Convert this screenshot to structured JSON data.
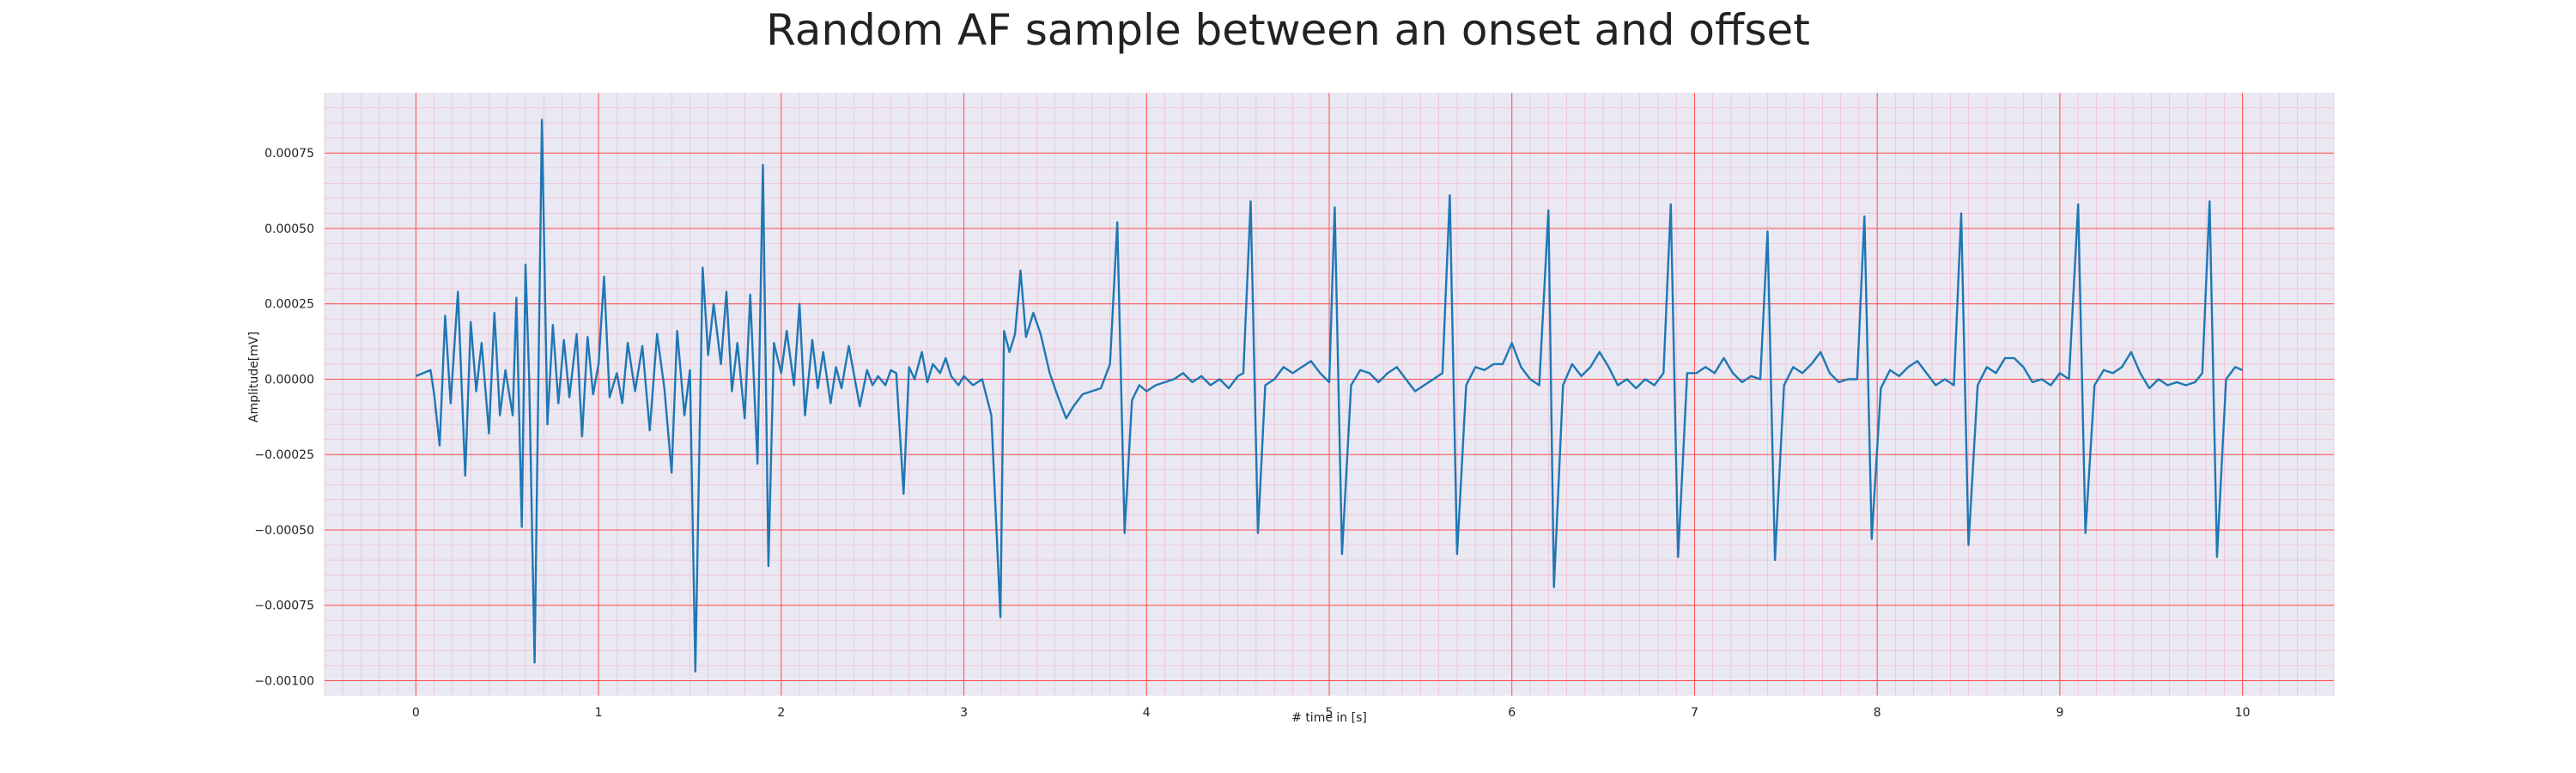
{
  "chart_data": {
    "type": "line",
    "title": "Random AF sample between an onset and offset",
    "xlabel": "# time in [s]",
    "ylabel": "Amplitude[mV]",
    "xlim": [
      -0.5,
      10.5
    ],
    "ylim": [
      -0.00105,
      0.00095
    ],
    "x_ticks": [
      0,
      1,
      2,
      3,
      4,
      5,
      6,
      7,
      8,
      9,
      10
    ],
    "x_tick_labels": [
      "0",
      "1",
      "2",
      "3",
      "4",
      "5",
      "6",
      "7",
      "8",
      "9",
      "10"
    ],
    "y_ticks": [
      0.00075,
      0.0005,
      0.00025,
      0.0,
      -0.00025,
      -0.0005,
      -0.00075,
      -0.001
    ],
    "y_tick_labels": [
      "0.00075",
      "0.00050",
      "0.00025",
      "0.00000",
      "−0.00025",
      "−0.00050",
      "−0.00075",
      "−0.00100"
    ],
    "grid": true,
    "minor_grid": true,
    "colors": {
      "line": "#1f77b4",
      "major_grid": "#ff4d4d",
      "minor_grid": "#f2b5c8",
      "plot_background": "#eae8f2"
    },
    "series": [
      {
        "points": [
          [
            0.0,
            1e-05
          ],
          [
            0.04,
            2e-05
          ],
          [
            0.08,
            3e-05
          ],
          [
            0.1,
            -5e-05
          ],
          [
            0.13,
            -0.00022
          ],
          [
            0.16,
            0.00021
          ],
          [
            0.19,
            -8e-05
          ],
          [
            0.23,
            0.00029
          ],
          [
            0.27,
            -0.00032
          ],
          [
            0.3,
            0.00019
          ],
          [
            0.33,
            -4e-05
          ],
          [
            0.36,
            0.00012
          ],
          [
            0.4,
            -0.00018
          ],
          [
            0.43,
            0.00022
          ],
          [
            0.46,
            -0.00012
          ],
          [
            0.49,
            3e-05
          ],
          [
            0.53,
            -0.00012
          ],
          [
            0.55,
            0.00027
          ],
          [
            0.58,
            -0.00049
          ],
          [
            0.6,
            0.00038
          ],
          [
            0.62,
            0.0
          ],
          [
            0.65,
            -0.00094
          ],
          [
            0.69,
            0.00086
          ],
          [
            0.72,
            -0.00015
          ],
          [
            0.75,
            0.00018
          ],
          [
            0.78,
            -8e-05
          ],
          [
            0.81,
            0.00013
          ],
          [
            0.84,
            -6e-05
          ],
          [
            0.88,
            0.00015
          ],
          [
            0.91,
            -0.00019
          ],
          [
            0.94,
            0.00014
          ],
          [
            0.97,
            -5e-05
          ],
          [
            1.0,
            5e-05
          ],
          [
            1.03,
            0.00034
          ],
          [
            1.06,
            -6e-05
          ],
          [
            1.1,
            2e-05
          ],
          [
            1.13,
            -8e-05
          ],
          [
            1.16,
            0.00012
          ],
          [
            1.2,
            -4e-05
          ],
          [
            1.24,
            0.00011
          ],
          [
            1.28,
            -0.00017
          ],
          [
            1.32,
            0.00015
          ],
          [
            1.36,
            -3e-05
          ],
          [
            1.4,
            -0.00031
          ],
          [
            1.43,
            0.00016
          ],
          [
            1.47,
            -0.00012
          ],
          [
            1.5,
            3e-05
          ],
          [
            1.53,
            -0.00097
          ],
          [
            1.57,
            0.00037
          ],
          [
            1.6,
            8e-05
          ],
          [
            1.63,
            0.00025
          ],
          [
            1.67,
            5e-05
          ],
          [
            1.7,
            0.00029
          ],
          [
            1.73,
            -4e-05
          ],
          [
            1.76,
            0.00012
          ],
          [
            1.8,
            -0.00013
          ],
          [
            1.83,
            0.00028
          ],
          [
            1.87,
            -0.00028
          ],
          [
            1.9,
            0.00071
          ],
          [
            1.93,
            -0.00062
          ],
          [
            1.96,
            0.00012
          ],
          [
            2.0,
            2e-05
          ],
          [
            2.03,
            0.00016
          ],
          [
            2.07,
            -2e-05
          ],
          [
            2.1,
            0.00025
          ],
          [
            2.13,
            -0.00012
          ],
          [
            2.17,
            0.00013
          ],
          [
            2.2,
            -3e-05
          ],
          [
            2.23,
            9e-05
          ],
          [
            2.27,
            -8e-05
          ],
          [
            2.3,
            4e-05
          ],
          [
            2.33,
            -3e-05
          ],
          [
            2.37,
            0.00011
          ],
          [
            2.4,
            1e-05
          ],
          [
            2.43,
            -9e-05
          ],
          [
            2.47,
            3e-05
          ],
          [
            2.5,
            -2e-05
          ],
          [
            2.53,
            1e-05
          ],
          [
            2.57,
            -2e-05
          ],
          [
            2.6,
            3e-05
          ],
          [
            2.63,
            2e-05
          ],
          [
            2.67,
            -0.00038
          ],
          [
            2.7,
            4e-05
          ],
          [
            2.73,
            0.0
          ],
          [
            2.77,
            9e-05
          ],
          [
            2.8,
            -1e-05
          ],
          [
            2.83,
            5e-05
          ],
          [
            2.87,
            2e-05
          ],
          [
            2.9,
            7e-05
          ],
          [
            2.93,
            1e-05
          ],
          [
            2.97,
            -2e-05
          ],
          [
            3.0,
            1e-05
          ],
          [
            3.05,
            -2e-05
          ],
          [
            3.1,
            0.0
          ],
          [
            3.15,
            -0.00012
          ],
          [
            3.2,
            -0.00079
          ],
          [
            3.22,
            0.00016
          ],
          [
            3.25,
            9e-05
          ],
          [
            3.28,
            0.00015
          ],
          [
            3.31,
            0.00036
          ],
          [
            3.34,
            0.00014
          ],
          [
            3.38,
            0.00022
          ],
          [
            3.42,
            0.00015
          ],
          [
            3.47,
            2e-05
          ],
          [
            3.51,
            -5e-05
          ],
          [
            3.56,
            -0.00013
          ],
          [
            3.6,
            -9e-05
          ],
          [
            3.65,
            -5e-05
          ],
          [
            3.7,
            -4e-05
          ],
          [
            3.75,
            -3e-05
          ],
          [
            3.8,
            5e-05
          ],
          [
            3.84,
            0.00052
          ],
          [
            3.88,
            -0.00051
          ],
          [
            3.92,
            -7e-05
          ],
          [
            3.96,
            -2e-05
          ],
          [
            4.0,
            -4e-05
          ],
          [
            4.05,
            -2e-05
          ],
          [
            4.1,
            -1e-05
          ],
          [
            4.15,
            0.0
          ],
          [
            4.2,
            2e-05
          ],
          [
            4.25,
            -1e-05
          ],
          [
            4.3,
            1e-05
          ],
          [
            4.35,
            -2e-05
          ],
          [
            4.4,
            0.0
          ],
          [
            4.45,
            -3e-05
          ],
          [
            4.5,
            1e-05
          ],
          [
            4.53,
            2e-05
          ],
          [
            4.57,
            0.00059
          ],
          [
            4.61,
            -0.00051
          ],
          [
            4.65,
            -2e-05
          ],
          [
            4.7,
            0.0
          ],
          [
            4.75,
            4e-05
          ],
          [
            4.8,
            2e-05
          ],
          [
            4.85,
            4e-05
          ],
          [
            4.9,
            6e-05
          ],
          [
            4.95,
            2e-05
          ],
          [
            5.0,
            -1e-05
          ],
          [
            5.03,
            0.00057
          ],
          [
            5.07,
            -0.00058
          ],
          [
            5.12,
            -2e-05
          ],
          [
            5.17,
            3e-05
          ],
          [
            5.22,
            2e-05
          ],
          [
            5.27,
            -1e-05
          ],
          [
            5.32,
            2e-05
          ],
          [
            5.37,
            4e-05
          ],
          [
            5.42,
            0.0
          ],
          [
            5.47,
            -4e-05
          ],
          [
            5.52,
            -2e-05
          ],
          [
            5.57,
            0.0
          ],
          [
            5.62,
            2e-05
          ],
          [
            5.66,
            0.00061
          ],
          [
            5.7,
            -0.00058
          ],
          [
            5.75,
            -2e-05
          ],
          [
            5.8,
            4e-05
          ],
          [
            5.85,
            3e-05
          ],
          [
            5.9,
            5e-05
          ],
          [
            5.95,
            5e-05
          ],
          [
            6.0,
            0.00012
          ],
          [
            6.05,
            4e-05
          ],
          [
            6.1,
            0.0
          ],
          [
            6.15,
            -2e-05
          ],
          [
            6.2,
            0.00056
          ],
          [
            6.23,
            -0.00069
          ],
          [
            6.28,
            -2e-05
          ],
          [
            6.33,
            5e-05
          ],
          [
            6.38,
            1e-05
          ],
          [
            6.43,
            4e-05
          ],
          [
            6.48,
            9e-05
          ],
          [
            6.53,
            4e-05
          ],
          [
            6.58,
            -2e-05
          ],
          [
            6.63,
            0.0
          ],
          [
            6.68,
            -3e-05
          ],
          [
            6.73,
            0.0
          ],
          [
            6.78,
            -2e-05
          ],
          [
            6.83,
            2e-05
          ],
          [
            6.87,
            0.00058
          ],
          [
            6.91,
            -0.00059
          ],
          [
            6.96,
            2e-05
          ],
          [
            7.01,
            2e-05
          ],
          [
            7.06,
            4e-05
          ],
          [
            7.11,
            2e-05
          ],
          [
            7.16,
            7e-05
          ],
          [
            7.21,
            2e-05
          ],
          [
            7.26,
            -1e-05
          ],
          [
            7.31,
            1e-05
          ],
          [
            7.36,
            0.0
          ],
          [
            7.4,
            0.00049
          ],
          [
            7.44,
            -0.0006
          ],
          [
            7.49,
            -2e-05
          ],
          [
            7.54,
            4e-05
          ],
          [
            7.59,
            2e-05
          ],
          [
            7.64,
            5e-05
          ],
          [
            7.69,
            9e-05
          ],
          [
            7.74,
            2e-05
          ],
          [
            7.79,
            -1e-05
          ],
          [
            7.84,
            0.0
          ],
          [
            7.89,
            0.0
          ],
          [
            7.93,
            0.00054
          ],
          [
            7.97,
            -0.00053
          ],
          [
            8.02,
            -3e-05
          ],
          [
            8.07,
            3e-05
          ],
          [
            8.12,
            1e-05
          ],
          [
            8.17,
            4e-05
          ],
          [
            8.22,
            6e-05
          ],
          [
            8.27,
            2e-05
          ],
          [
            8.32,
            -2e-05
          ],
          [
            8.37,
            0.0
          ],
          [
            8.42,
            -2e-05
          ],
          [
            8.46,
            0.00055
          ],
          [
            8.5,
            -0.00055
          ],
          [
            8.55,
            -2e-05
          ],
          [
            8.6,
            4e-05
          ],
          [
            8.65,
            2e-05
          ],
          [
            8.7,
            7e-05
          ],
          [
            8.75,
            7e-05
          ],
          [
            8.8,
            4e-05
          ],
          [
            8.85,
            -1e-05
          ],
          [
            8.9,
            0.0
          ],
          [
            8.95,
            -2e-05
          ],
          [
            9.0,
            2e-05
          ],
          [
            9.05,
            0.0
          ],
          [
            9.1,
            0.00058
          ],
          [
            9.14,
            -0.00051
          ],
          [
            9.19,
            -2e-05
          ],
          [
            9.24,
            3e-05
          ],
          [
            9.29,
            2e-05
          ],
          [
            9.34,
            4e-05
          ],
          [
            9.39,
            9e-05
          ],
          [
            9.44,
            2e-05
          ],
          [
            9.49,
            -3e-05
          ],
          [
            9.54,
            0.0
          ],
          [
            9.59,
            -2e-05
          ],
          [
            9.64,
            -1e-05
          ],
          [
            9.69,
            -2e-05
          ],
          [
            9.74,
            -1e-05
          ],
          [
            9.78,
            2e-05
          ],
          [
            9.82,
            0.00059
          ],
          [
            9.86,
            -0.00059
          ],
          [
            9.91,
            0.0
          ],
          [
            9.96,
            4e-05
          ],
          [
            10.0,
            3e-05
          ]
        ]
      }
    ]
  }
}
